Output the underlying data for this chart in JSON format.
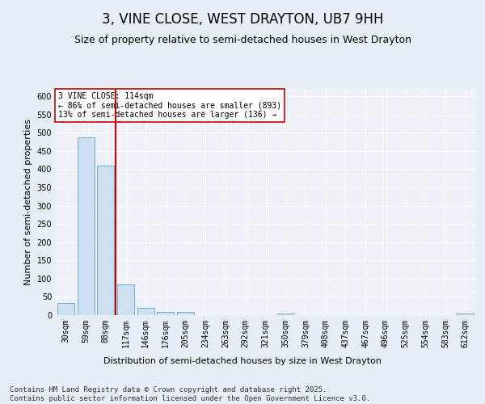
{
  "title": "3, VINE CLOSE, WEST DRAYTON, UB7 9HH",
  "subtitle": "Size of property relative to semi-detached houses in West Drayton",
  "xlabel": "Distribution of semi-detached houses by size in West Drayton",
  "ylabel": "Number of semi-detached properties",
  "categories": [
    "30sqm",
    "59sqm",
    "88sqm",
    "117sqm",
    "146sqm",
    "176sqm",
    "205sqm",
    "234sqm",
    "263sqm",
    "292sqm",
    "321sqm",
    "350sqm",
    "379sqm",
    "408sqm",
    "437sqm",
    "467sqm",
    "496sqm",
    "525sqm",
    "554sqm",
    "583sqm",
    "612sqm"
  ],
  "values": [
    33,
    487,
    410,
    85,
    20,
    8,
    8,
    0,
    0,
    0,
    0,
    5,
    0,
    0,
    0,
    0,
    0,
    0,
    0,
    0,
    5
  ],
  "bar_color": "#cce0f0",
  "bar_edge_color": "#5ba3d0",
  "vline_color": "#cc0000",
  "annotation_text": "3 VINE CLOSE: 114sqm\n← 86% of semi-detached houses are smaller (893)\n13% of semi-detached houses are larger (136) →",
  "annotation_box_color": "#ffffff",
  "annotation_box_edge": "#cc0000",
  "ylim": [
    0,
    620
  ],
  "yticks": [
    0,
    50,
    100,
    150,
    200,
    250,
    300,
    350,
    400,
    450,
    500,
    550,
    600
  ],
  "footer": "Contains HM Land Registry data © Crown copyright and database right 2025.\nContains public sector information licensed under the Open Government Licence v3.0.",
  "bg_color": "#e8eef5",
  "plot_bg_color": "#eef2f8",
  "grid_color": "#ffffff",
  "title_fontsize": 12,
  "subtitle_fontsize": 9,
  "axis_label_fontsize": 8,
  "tick_fontsize": 7,
  "footer_fontsize": 6.5
}
